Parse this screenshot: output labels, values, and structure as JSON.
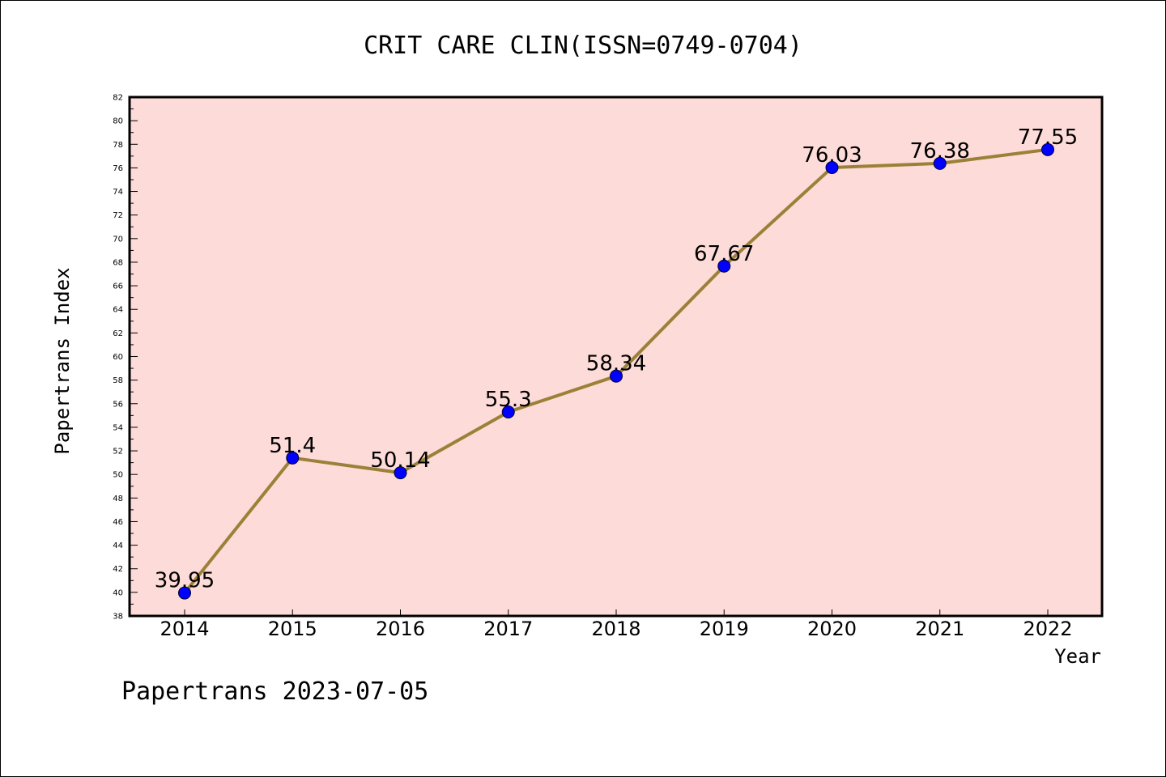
{
  "chart_data": {
    "type": "line",
    "title": "CRIT CARE CLIN(ISSN=0749-0704)",
    "xlabel": "Year",
    "ylabel": "Papertrans Index",
    "x": [
      "2014",
      "2015",
      "2016",
      "2017",
      "2018",
      "2019",
      "2020",
      "2021",
      "2022"
    ],
    "series": [
      {
        "values": [
          39.95,
          51.4,
          50.14,
          55.3,
          58.34,
          67.67,
          76.03,
          76.38,
          77.55
        ],
        "labels": [
          "39.95",
          "51.4",
          "50.14",
          "55.3",
          "58.34",
          "67.67",
          "76.03",
          "76.38",
          "77.55"
        ]
      }
    ],
    "ylim": [
      38,
      82
    ],
    "yticks": [
      "38",
      "40",
      "42",
      "44",
      "46",
      "48",
      "50",
      "52",
      "54",
      "56",
      "58",
      "60",
      "62",
      "64",
      "66",
      "68",
      "70",
      "72",
      "74",
      "76",
      "78",
      "80",
      "82"
    ],
    "grid": false,
    "colors": {
      "plot_background": "#fddbd8",
      "line": "#9b8138",
      "marker": "#0000ff"
    }
  },
  "footer": "Papertrans 2023-07-05"
}
